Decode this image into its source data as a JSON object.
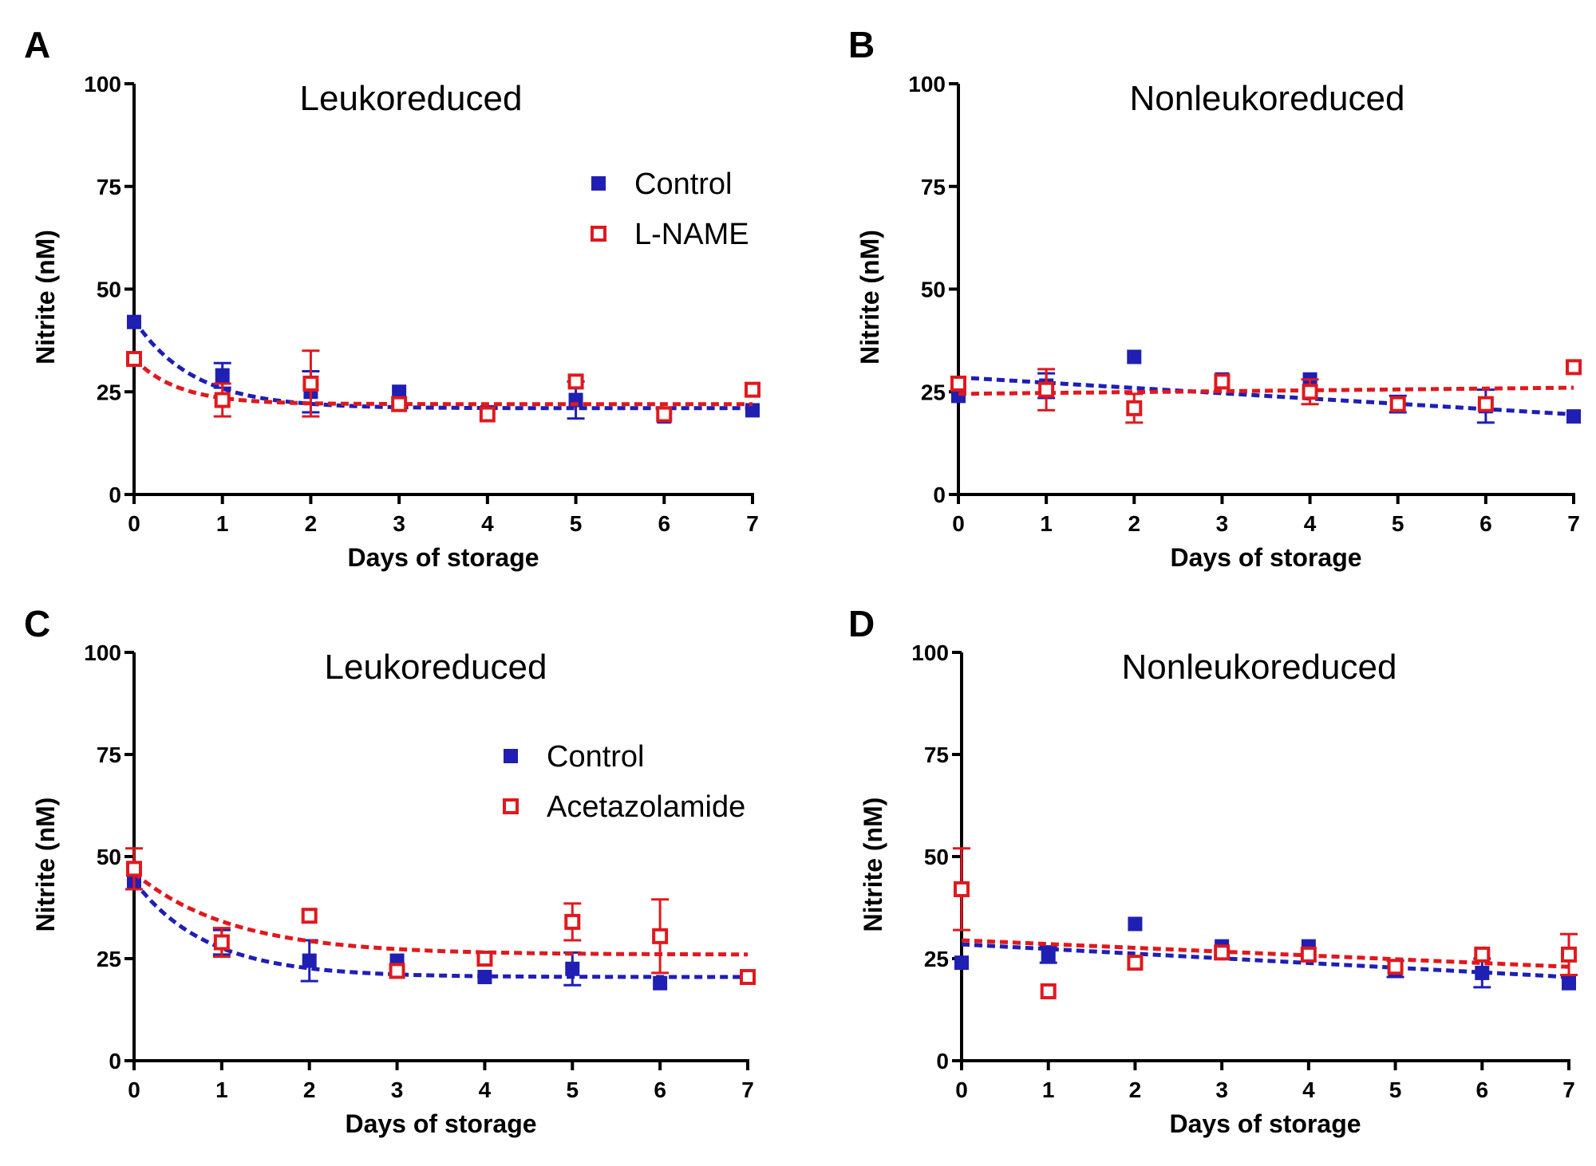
{
  "figure": {
    "colors": {
      "control": "#1f1fb4",
      "treatment": "#e0191e",
      "axis": "#000000"
    }
  },
  "chart_data": [
    {
      "panel": "A",
      "type": "scatter",
      "title": "Leukoreduced",
      "xlabel": "Days of storage",
      "ylabel": "Nitrite (nM)",
      "xlim": [
        0,
        7
      ],
      "ylim": [
        0,
        100
      ],
      "xticks": [
        "0",
        "1",
        "2",
        "3",
        "4",
        "5",
        "6",
        "7"
      ],
      "yticks": [
        "0",
        "25",
        "50",
        "75",
        "100"
      ],
      "grid": false,
      "legend": {
        "placement": "top-right",
        "entries": [
          "Control",
          "L-NAME"
        ]
      },
      "series": [
        {
          "name": "Control",
          "marker": "filled-square",
          "color": "#1f1fb4",
          "x": [
            0,
            1,
            2,
            3,
            4,
            5,
            6,
            7
          ],
          "y": [
            42,
            29,
            25,
            25,
            20,
            23,
            19,
            20.5
          ],
          "err": [
            0,
            3,
            5,
            0,
            0,
            4.5,
            0,
            0
          ],
          "fit": {
            "type": "exponential decay",
            "y0": 42.5,
            "plateau": 21,
            "k": 1.5
          }
        },
        {
          "name": "L-NAME",
          "marker": "open-square",
          "color": "#e0191e",
          "x": [
            0,
            1,
            2,
            3,
            4,
            5,
            6,
            7
          ],
          "y": [
            33,
            23,
            27,
            22,
            19.5,
            27.5,
            19.5,
            25.5
          ],
          "err": [
            0,
            4,
            8,
            0,
            0,
            0,
            0,
            0
          ],
          "fit": {
            "type": "exponential decay",
            "y0": 33,
            "plateau": 22,
            "k": 2.0
          }
        }
      ]
    },
    {
      "panel": "B",
      "type": "scatter",
      "title": "Nonleukoreduced",
      "xlabel": "Days of storage",
      "ylabel": "Nitrite (nM)",
      "xlim": [
        0,
        7
      ],
      "ylim": [
        0,
        100
      ],
      "xticks": [
        "0",
        "1",
        "2",
        "3",
        "4",
        "5",
        "6",
        "7"
      ],
      "yticks": [
        "0",
        "25",
        "50",
        "75",
        "100"
      ],
      "grid": false,
      "series": [
        {
          "name": "Control",
          "marker": "filled-square",
          "color": "#1f1fb4",
          "x": [
            0,
            1,
            2,
            3,
            4,
            5,
            6,
            7
          ],
          "y": [
            24,
            26.5,
            33.5,
            28,
            28,
            22,
            21.5,
            19
          ],
          "err": [
            0,
            3,
            0,
            0,
            0,
            2,
            4,
            0
          ],
          "fit": {
            "type": "linear",
            "start": 28.5,
            "end": 19.5
          }
        },
        {
          "name": "L-NAME",
          "marker": "open-square",
          "color": "#e0191e",
          "x": [
            0,
            1,
            2,
            3,
            4,
            5,
            6,
            7
          ],
          "y": [
            27,
            25.5,
            21,
            27.5,
            25,
            22,
            22,
            31
          ],
          "err": [
            0,
            5,
            3.5,
            0,
            3,
            0,
            0,
            0
          ],
          "fit": {
            "type": "linear",
            "start": 24.5,
            "end": 26
          }
        }
      ]
    },
    {
      "panel": "C",
      "type": "scatter",
      "title": "Leukoreduced",
      "xlabel": "Days of storage",
      "ylabel": "Nitrite (nM)",
      "xlim": [
        0,
        7
      ],
      "ylim": [
        0,
        100
      ],
      "xticks": [
        "0",
        "1",
        "2",
        "3",
        "4",
        "5",
        "6",
        "7"
      ],
      "yticks": [
        "0",
        "25",
        "50",
        "75",
        "100"
      ],
      "grid": false,
      "legend": {
        "placement": "top-right",
        "entries": [
          "Control",
          "Acetazolamide"
        ]
      },
      "series": [
        {
          "name": "Control",
          "marker": "filled-square",
          "color": "#1f1fb4",
          "x": [
            0,
            1,
            2,
            3,
            4,
            5,
            6,
            7
          ],
          "y": [
            44,
            29,
            24.5,
            24.5,
            20.5,
            22.5,
            19,
            20.5
          ],
          "err": [
            0,
            3,
            5,
            0,
            0,
            4,
            0,
            0
          ],
          "fit": {
            "type": "exponential decay",
            "y0": 44,
            "plateau": 20.5,
            "k": 1.2
          }
        },
        {
          "name": "Acetazolamide",
          "marker": "open-square",
          "color": "#e0191e",
          "x": [
            0,
            1,
            2,
            3,
            4,
            5,
            6,
            7
          ],
          "y": [
            47,
            29,
            35.5,
            22,
            25,
            34,
            30.5,
            20.5
          ],
          "err": [
            5,
            3.5,
            0,
            0,
            0,
            4.5,
            9,
            0
          ],
          "fit": {
            "type": "exponential decay",
            "y0": 46,
            "plateau": 26,
            "k": 0.9
          }
        }
      ]
    },
    {
      "panel": "D",
      "type": "scatter",
      "title": "Nonleukoreduced",
      "xlabel": "Days of storage",
      "ylabel": "Nitrite (nM)",
      "xlim": [
        0,
        7
      ],
      "ylim": [
        0,
        100
      ],
      "xticks": [
        "0",
        "1",
        "2",
        "3",
        "4",
        "5",
        "6",
        "7"
      ],
      "yticks": [
        "0",
        "25",
        "50",
        "75",
        "100"
      ],
      "grid": false,
      "series": [
        {
          "name": "Control",
          "marker": "filled-square",
          "color": "#1f1fb4",
          "x": [
            0,
            1,
            2,
            3,
            4,
            5,
            6,
            7
          ],
          "y": [
            24,
            26,
            33.5,
            28,
            28,
            22.5,
            21.5,
            19
          ],
          "err": [
            0,
            2,
            0,
            0,
            0,
            2,
            3.5,
            0
          ],
          "fit": {
            "type": "linear",
            "start": 28.5,
            "end": 20.5
          }
        },
        {
          "name": "Acetazolamide",
          "marker": "open-square",
          "color": "#e0191e",
          "x": [
            0,
            1,
            2,
            3,
            4,
            5,
            6,
            7
          ],
          "y": [
            42,
            17,
            24,
            26.5,
            26,
            23,
            26,
            26
          ],
          "err": [
            10,
            0,
            0,
            0,
            0,
            0,
            0,
            5
          ],
          "fit": {
            "type": "linear",
            "start": 29.5,
            "end": 23
          }
        }
      ]
    }
  ]
}
